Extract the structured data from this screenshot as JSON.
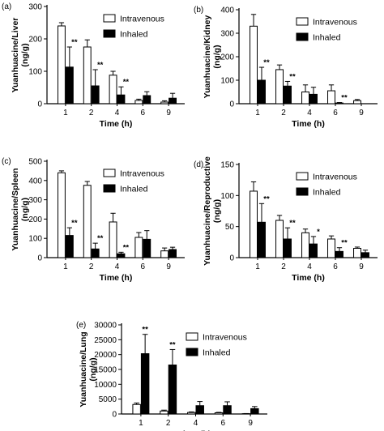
{
  "chart_data": [
    {
      "panel": "(a)",
      "type": "bar",
      "categories": [
        "1",
        "2",
        "4",
        "6",
        "9"
      ],
      "xlabel": "Time (h)",
      "ylabel": "Yuanhuacine/Liver",
      "ylabel_units": "(ng/g)",
      "ylim": [
        0,
        300
      ],
      "yticks": [
        0,
        100,
        200,
        300
      ],
      "series": [
        {
          "name": "Intravenous",
          "values": [
            240,
            175,
            88,
            10,
            5
          ],
          "errors": [
            10,
            22,
            12,
            4,
            4
          ]
        },
        {
          "name": "Inhaled",
          "values": [
            113,
            55,
            27,
            25,
            17
          ],
          "errors": [
            62,
            50,
            25,
            12,
            15
          ]
        }
      ],
      "significance": [
        "**",
        "**",
        "**",
        "",
        ""
      ],
      "legend": "top-right"
    },
    {
      "panel": "(b)",
      "type": "bar",
      "categories": [
        "1",
        "2",
        "4",
        "6",
        "9"
      ],
      "xlabel": "Time (h)",
      "ylabel": "Yuanhuacine/Kidney",
      "ylabel_units": "(ng/g)",
      "ylim": [
        0,
        400
      ],
      "yticks": [
        0,
        100,
        200,
        300,
        400
      ],
      "series": [
        {
          "name": "Intravenous",
          "values": [
            330,
            145,
            50,
            55,
            13
          ],
          "errors": [
            50,
            20,
            30,
            25,
            5
          ]
        },
        {
          "name": "Inhaled",
          "values": [
            100,
            75,
            40,
            3,
            0
          ],
          "errors": [
            55,
            20,
            30,
            2,
            0
          ]
        }
      ],
      "significance": [
        "**",
        "**",
        "",
        "**",
        ""
      ],
      "legend": "top-right"
    },
    {
      "panel": "(c)",
      "type": "bar",
      "categories": [
        "1",
        "2",
        "4",
        "6",
        "9"
      ],
      "xlabel": "Time (h)",
      "ylabel": "Yuanhuacine/Spleen",
      "ylabel_units": "(ng/g)",
      "ylim": [
        0,
        500
      ],
      "yticks": [
        0,
        100,
        200,
        300,
        400,
        500
      ],
      "series": [
        {
          "name": "Intravenous",
          "values": [
            440,
            375,
            185,
            105,
            35
          ],
          "errors": [
            10,
            20,
            45,
            25,
            15
          ]
        },
        {
          "name": "Inhaled",
          "values": [
            115,
            45,
            20,
            95,
            42
          ],
          "errors": [
            40,
            30,
            8,
            45,
            12
          ]
        }
      ],
      "significance": [
        "**",
        "**",
        "**",
        "",
        ""
      ],
      "legend": "top-right"
    },
    {
      "panel": "(d)",
      "type": "bar",
      "categories": [
        "1",
        "2",
        "4",
        "6",
        "9"
      ],
      "xlabel": "Time (h)",
      "ylabel": "Yuanhuacine/Reproductive",
      "ylabel_units": "(ng/g)",
      "ylim": [
        0,
        150
      ],
      "yticks": [
        0,
        50,
        100,
        150
      ],
      "series": [
        {
          "name": "Intravenous",
          "values": [
            107,
            60,
            40,
            30,
            15
          ],
          "errors": [
            15,
            8,
            6,
            5,
            2
          ]
        },
        {
          "name": "Inhaled",
          "values": [
            57,
            30,
            22,
            10,
            8
          ],
          "errors": [
            30,
            18,
            12,
            6,
            4
          ]
        }
      ],
      "significance": [
        "**",
        "**",
        "*",
        "**",
        ""
      ],
      "legend": "top-right"
    },
    {
      "panel": "(e)",
      "type": "bar",
      "categories": [
        "1",
        "2",
        "4",
        "6",
        "9"
      ],
      "xlabel": "Time (h)",
      "ylabel": "Yuanhuacine/Lung",
      "ylabel_units": "(ng/g)",
      "ylim": [
        0,
        30000
      ],
      "yticks": [
        0,
        5000,
        10000,
        15000,
        20000,
        25000,
        30000
      ],
      "series": [
        {
          "name": "Intravenous",
          "values": [
            3200,
            1000,
            500,
            400,
            100
          ],
          "errors": [
            500,
            300,
            200,
            150,
            50
          ]
        },
        {
          "name": "Inhaled",
          "values": [
            20300,
            16500,
            2800,
            2800,
            1800
          ],
          "errors": [
            6500,
            5200,
            1400,
            1300,
            700
          ]
        }
      ],
      "significance": [
        "**",
        "**",
        "",
        "",
        ""
      ],
      "legend": "top-right"
    }
  ]
}
